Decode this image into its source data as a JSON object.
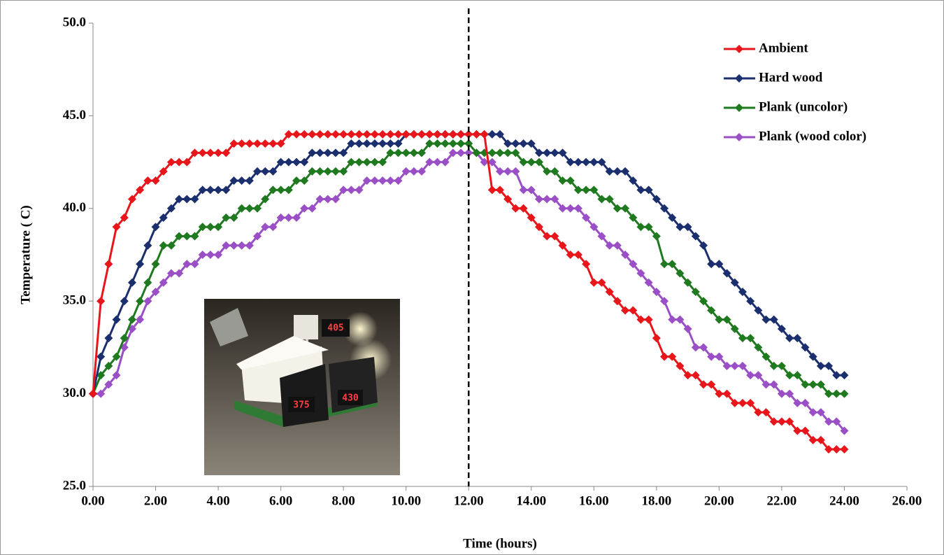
{
  "chart_data": {
    "type": "line",
    "xlabel": "Time (hours)",
    "ylabel": "Temperature ( C)",
    "x": [
      0,
      0.25,
      0.5,
      0.75,
      1,
      1.25,
      1.5,
      1.75,
      2,
      2.25,
      2.5,
      2.75,
      3,
      3.25,
      3.5,
      3.75,
      4,
      4.25,
      4.5,
      4.75,
      5,
      5.25,
      5.5,
      5.75,
      6,
      6.25,
      6.5,
      6.75,
      7,
      7.25,
      7.5,
      7.75,
      8,
      8.25,
      8.5,
      8.75,
      9,
      9.25,
      9.5,
      9.75,
      10,
      10.25,
      10.5,
      10.75,
      11,
      11.25,
      11.5,
      11.75,
      12,
      12.25,
      12.5,
      12.75,
      13,
      13.25,
      13.5,
      13.75,
      14,
      14.25,
      14.5,
      14.75,
      15,
      15.25,
      15.5,
      15.75,
      16,
      16.25,
      16.5,
      16.75,
      17,
      17.25,
      17.5,
      17.75,
      18,
      18.25,
      18.5,
      18.75,
      19,
      19.25,
      19.5,
      19.75,
      20,
      20.25,
      20.5,
      20.75,
      21,
      21.25,
      21.5,
      21.75,
      22,
      22.25,
      22.5,
      22.75,
      23,
      23.25,
      23.5,
      23.75,
      24
    ],
    "series": [
      {
        "name": "Ambient",
        "color": "#e8151b",
        "values": [
          30,
          35,
          37,
          39,
          39.5,
          40.5,
          41,
          41.5,
          41.5,
          42,
          42.5,
          42.5,
          42.5,
          43,
          43,
          43,
          43,
          43,
          43.5,
          43.5,
          43.5,
          43.5,
          43.5,
          43.5,
          43.5,
          44,
          44,
          44,
          44,
          44,
          44,
          44,
          44,
          44,
          44,
          44,
          44,
          44,
          44,
          44,
          44,
          44,
          44,
          44,
          44,
          44,
          44,
          44,
          44,
          44,
          44,
          41,
          41,
          40.5,
          40,
          40,
          39.5,
          39,
          38.5,
          38.5,
          38,
          37.5,
          37.5,
          37,
          36,
          36,
          35.5,
          35,
          34.5,
          34.5,
          34,
          34,
          33,
          32,
          32,
          31.5,
          31,
          31,
          30.5,
          30.5,
          30,
          30,
          29.5,
          29.5,
          29.5,
          29,
          29,
          28.5,
          28.5,
          28.5,
          28,
          28,
          27.5,
          27.5,
          27,
          27,
          27
        ]
      },
      {
        "name": "Hard wood",
        "color": "#1b2f6e",
        "values": [
          30,
          32,
          33,
          34,
          35,
          36,
          37,
          38,
          39,
          39.5,
          40,
          40.5,
          40.5,
          40.5,
          41,
          41,
          41,
          41,
          41.5,
          41.5,
          41.5,
          42,
          42,
          42,
          42.5,
          42.5,
          42.5,
          42.5,
          43,
          43,
          43,
          43,
          43,
          43.5,
          43.5,
          43.5,
          43.5,
          43.5,
          43.5,
          43.5,
          44,
          44,
          44,
          44,
          44,
          44,
          44,
          44,
          44,
          44,
          44,
          44,
          44,
          43.5,
          43.5,
          43.5,
          43.5,
          43,
          43,
          43,
          43,
          42.5,
          42.5,
          42.5,
          42.5,
          42.5,
          42,
          42,
          42,
          41.5,
          41,
          41,
          40.5,
          40,
          39.5,
          39,
          39,
          38.5,
          38,
          37,
          37,
          36.5,
          36,
          35.5,
          35,
          34.5,
          34,
          34,
          33.5,
          33,
          33,
          32.5,
          32,
          31.5,
          31.5,
          31,
          31
        ]
      },
      {
        "name": "Plank (uncolor)",
        "color": "#1f7a1f",
        "values": [
          30,
          31,
          31.5,
          32,
          33,
          34,
          35,
          36,
          37,
          38,
          38,
          38.5,
          38.5,
          38.5,
          39,
          39,
          39,
          39.5,
          39.5,
          40,
          40,
          40,
          40.5,
          41,
          41,
          41,
          41.5,
          41.5,
          42,
          42,
          42,
          42,
          42,
          42.5,
          42.5,
          42.5,
          42.5,
          42.5,
          43,
          43,
          43,
          43,
          43,
          43.5,
          43.5,
          43.5,
          43.5,
          43.5,
          43.5,
          43,
          43,
          43,
          43,
          43,
          43,
          42.5,
          42.5,
          42.5,
          42,
          42,
          41.5,
          41.5,
          41,
          41,
          41,
          40.5,
          40.5,
          40,
          40,
          39.5,
          39,
          39,
          38.5,
          37,
          37,
          36.5,
          36,
          35.5,
          35,
          34.5,
          34,
          34,
          33.5,
          33,
          33,
          32.5,
          32,
          31.5,
          31.5,
          31,
          31,
          30.5,
          30.5,
          30.5,
          30,
          30,
          30
        ]
      },
      {
        "name": "Plank (wood color)",
        "color": "#9a4fc7",
        "values": [
          30,
          30,
          30.5,
          31,
          32.5,
          33.5,
          34,
          35,
          35.5,
          36,
          36.5,
          36.5,
          37,
          37,
          37.5,
          37.5,
          37.5,
          38,
          38,
          38,
          38,
          38.5,
          39,
          39,
          39.5,
          39.5,
          39.5,
          40,
          40,
          40.5,
          40.5,
          40.5,
          41,
          41,
          41,
          41.5,
          41.5,
          41.5,
          41.5,
          41.5,
          42,
          42,
          42,
          42.5,
          42.5,
          42.5,
          43,
          43,
          43,
          43,
          42.5,
          42.5,
          42,
          42,
          42,
          41,
          41,
          40.5,
          40.5,
          40.5,
          40,
          40,
          40,
          39.5,
          39,
          38.5,
          38,
          38,
          37.5,
          37,
          36.5,
          36,
          35.5,
          35,
          34,
          34,
          33.5,
          32.5,
          32.5,
          32,
          32,
          31.5,
          31.5,
          31.5,
          31,
          31,
          30.5,
          30.5,
          30,
          30,
          29.5,
          29.5,
          29,
          29,
          28.5,
          28.5,
          28
        ]
      }
    ],
    "xlim": [
      0,
      26
    ],
    "xticks": [
      {
        "value": 0,
        "label": "0.00"
      },
      {
        "value": 2,
        "label": "2.00"
      },
      {
        "value": 4,
        "label": "4.00"
      },
      {
        "value": 6,
        "label": "6.00"
      },
      {
        "value": 8,
        "label": "8.00"
      },
      {
        "value": 10,
        "label": "10.00"
      },
      {
        "value": 12,
        "label": "12.00"
      },
      {
        "value": 14,
        "label": "14.00"
      },
      {
        "value": 16,
        "label": "16.00"
      },
      {
        "value": 18,
        "label": "18.00"
      },
      {
        "value": 20,
        "label": "20.00"
      },
      {
        "value": 22,
        "label": "22.00"
      },
      {
        "value": 24,
        "label": "24.00"
      },
      {
        "value": 26,
        "label": "26.00"
      }
    ],
    "ylim": [
      25,
      50
    ],
    "yticks": [
      {
        "value": 25,
        "label": "25.0"
      },
      {
        "value": 30,
        "label": "30.0"
      },
      {
        "value": 35,
        "label": "35.0"
      },
      {
        "value": 40,
        "label": "40.0"
      },
      {
        "value": 45,
        "label": "45.0"
      },
      {
        "value": 50,
        "label": "50.0"
      }
    ],
    "vline": 12,
    "legend": "upper right",
    "inset_labels": [
      "405",
      "375",
      "430"
    ]
  }
}
